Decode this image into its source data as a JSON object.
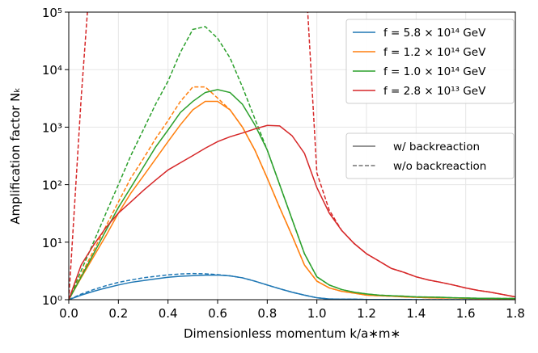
{
  "chart_data": {
    "type": "line",
    "xlabel": "Dimensionless momentum k/a∗m∗",
    "ylabel": "Amplification factor Nₖ",
    "yscale": "log",
    "grid": true,
    "legend": "upper right",
    "x": [
      0,
      0.05,
      0.1,
      0.15,
      0.2,
      0.25,
      0.3,
      0.35,
      0.4,
      0.45,
      0.5,
      0.55,
      0.6,
      0.65,
      0.7,
      0.75,
      0.8,
      0.85,
      0.9,
      0.95,
      1.0,
      1.05,
      1.1,
      1.15,
      1.2,
      1.25,
      1.3,
      1.35,
      1.4,
      1.45,
      1.5,
      1.55,
      1.6,
      1.65,
      1.7,
      1.75,
      1.8
    ],
    "xlim": [
      0,
      1.8
    ],
    "ylim": [
      1,
      100000
    ],
    "xticks": [
      {
        "value": 0,
        "label": "0.0"
      },
      0.2,
      0.4,
      0.6,
      0.8,
      {
        "value": 1,
        "label": "1.0"
      },
      1.2,
      1.4,
      1.6,
      1.8
    ],
    "yticks": [
      {
        "value": 1,
        "label": "10⁰"
      },
      {
        "value": 10,
        "label": "10¹"
      },
      {
        "value": 100,
        "label": "10²"
      },
      {
        "value": 1000,
        "label": "10³"
      },
      {
        "value": 10000,
        "label": "10⁴"
      },
      {
        "value": 100000,
        "label": "10⁵"
      }
    ],
    "series": [
      {
        "name": "f = 5.8 × 10¹⁴ GeV",
        "color": "#1f77b4",
        "values": [
          1,
          1.2,
          1.4,
          1.6,
          1.8,
          2.0,
          2.15,
          2.3,
          2.45,
          2.55,
          2.62,
          2.67,
          2.68,
          2.6,
          2.4,
          2.1,
          1.8,
          1.55,
          1.35,
          1.2,
          1.08,
          1.03,
          1.02,
          1.02,
          1.01,
          1.01,
          1.01,
          1.01,
          1.0,
          1.0,
          1.0,
          1.0,
          1.0,
          1.0,
          1.0,
          1.0,
          1.0
        ],
        "values_without_backreaction": [
          1,
          1.25,
          1.5,
          1.75,
          2.0,
          2.2,
          2.4,
          2.55,
          2.7,
          2.8,
          2.85,
          2.82,
          2.72,
          2.6,
          2.4,
          2.1,
          1.8,
          1.55,
          1.35,
          1.2,
          1.08,
          1.03,
          1.02,
          1.02,
          1.01,
          1.01,
          1.01,
          1.01,
          1.0,
          1.0,
          1.0,
          1.0,
          1.0,
          1.0,
          1.0,
          1.0,
          1.0
        ]
      },
      {
        "name": "f = 1.2 × 10¹⁴ GeV",
        "color": "#ff7f0e",
        "values": [
          1,
          2.4,
          5.6,
          13,
          32,
          71,
          140,
          280,
          560,
          1100,
          2000,
          2800,
          2800,
          2000,
          1000,
          400,
          130,
          40,
          13,
          4,
          2.1,
          1.6,
          1.4,
          1.3,
          1.2,
          1.17,
          1.15,
          1.12,
          1.1,
          1.08,
          1.07,
          1.07,
          1.06,
          1.05,
          1.05,
          1.04,
          1.04
        ],
        "values_without_backreaction": [
          1,
          2.7,
          7.1,
          19,
          50,
          130,
          280,
          630,
          1300,
          2800,
          5000,
          5000,
          3200,
          2000,
          1000,
          400,
          130,
          40,
          13,
          4,
          2.1,
          1.6,
          1.4,
          1.3,
          1.2,
          1.17,
          1.15,
          1.12,
          1.1,
          1.08,
          1.07,
          1.07,
          1.06,
          1.05,
          1.05,
          1.04,
          1.04
        ]
      },
      {
        "name": "f = 1.0 × 10¹⁴ GeV",
        "color": "#2ca02c",
        "values": [
          1,
          2.5,
          6.3,
          16,
          40,
          89,
          200,
          450,
          890,
          1800,
          2800,
          4000,
          4500,
          4000,
          2500,
          1100,
          400,
          100,
          25,
          6.3,
          2.5,
          1.8,
          1.5,
          1.35,
          1.26,
          1.2,
          1.17,
          1.15,
          1.12,
          1.11,
          1.1,
          1.08,
          1.07,
          1.06,
          1.06,
          1.05,
          1.05
        ],
        "values_without_backreaction": [
          1,
          3.2,
          10,
          32,
          100,
          320,
          890,
          2500,
          6300,
          20000,
          50000,
          56000,
          35000,
          16000,
          5000,
          1400,
          400,
          100,
          25,
          6.3,
          2.5,
          1.8,
          1.5,
          1.35,
          1.26,
          1.2,
          1.17,
          1.15,
          1.12,
          1.11,
          1.1,
          1.08,
          1.07,
          1.06,
          1.06,
          1.05,
          1.05
        ]
      },
      {
        "name": "f = 2.8 × 10¹³ GeV",
        "color": "#d62728",
        "values": [
          1,
          4,
          8.9,
          18,
          32,
          50,
          79,
          120,
          180,
          240,
          320,
          430,
          560,
          680,
          790,
          930,
          1070,
          1050,
          710,
          350,
          89,
          32,
          16,
          9.5,
          6.3,
          4.7,
          3.5,
          3,
          2.5,
          2.2,
          2,
          1.8,
          1.6,
          1.45,
          1.35,
          1.23,
          1.12
        ],
        "values_without_backreaction": [
          1,
          3200,
          3000000,
          null,
          null,
          null,
          null,
          null,
          null,
          null,
          null,
          null,
          null,
          null,
          null,
          null,
          null,
          null,
          null,
          1000000,
          160,
          36,
          16,
          9.5,
          6.3,
          4.7,
          3.5,
          3,
          2.5,
          2.2,
          2,
          1.8,
          1.6,
          1.45,
          1.35,
          1.23,
          1.12
        ]
      }
    ],
    "linestyle_legend": [
      {
        "label": "w/ backreaction",
        "dashed": false
      },
      {
        "label": "w/o backreaction",
        "dashed": true
      }
    ]
  }
}
